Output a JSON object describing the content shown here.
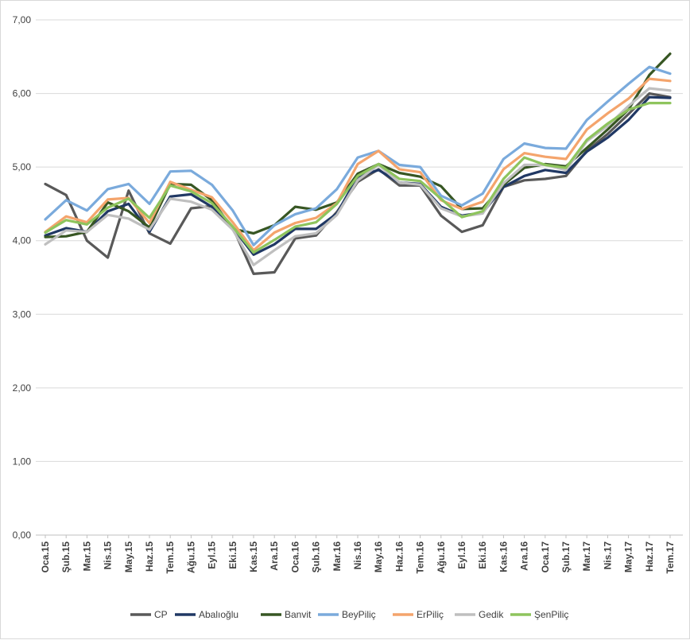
{
  "chart_data": {
    "type": "line",
    "title": "",
    "xlabel": "",
    "ylabel": "",
    "ylim": [
      0,
      7
    ],
    "yticks": [
      "0,00",
      "1,00",
      "2,00",
      "3,00",
      "4,00",
      "5,00",
      "6,00",
      "7,00"
    ],
    "grid": "horizontal",
    "legend_position": "bottom",
    "categories": [
      "Oca.15",
      "Şub.15",
      "Mar.15",
      "Nis.15",
      "May.15",
      "Haz.15",
      "Tem.15",
      "Ağu.15",
      "Eyl.15",
      "Eki.15",
      "Kas.15",
      "Ara.15",
      "Oca.16",
      "Şub.16",
      "Mar.16",
      "Nis.16",
      "May.16",
      "Haz.16",
      "Tem.16",
      "Ağu.16",
      "Eyl.16",
      "Eki.16",
      "Kas.16",
      "Ara.16",
      "Oca.17",
      "Şub.17",
      "Mar.17",
      "Nis.17",
      "May.17",
      "Haz.17",
      "Tem.17"
    ],
    "series": [
      {
        "name": "CP",
        "color": "#595959",
        "values": [
          4.77,
          4.62,
          4.0,
          3.77,
          4.68,
          4.1,
          3.96,
          4.44,
          4.47,
          4.18,
          3.55,
          3.57,
          4.03,
          4.07,
          4.39,
          4.8,
          4.97,
          4.75,
          4.75,
          4.34,
          4.12,
          4.21,
          4.73,
          4.82,
          4.84,
          4.88,
          5.22,
          5.45,
          5.72,
          6.0,
          5.95
        ]
      },
      {
        "name": "Abalıoğlu",
        "color": "#203864",
        "values": [
          4.07,
          4.17,
          4.12,
          4.4,
          4.5,
          4.12,
          4.6,
          4.63,
          4.46,
          4.18,
          3.81,
          3.95,
          4.16,
          4.16,
          4.37,
          4.87,
          4.96,
          4.79,
          4.77,
          4.46,
          4.34,
          4.38,
          4.73,
          4.88,
          4.96,
          4.92,
          5.21,
          5.4,
          5.64,
          5.95,
          5.94
        ]
      },
      {
        "name": "Banvit",
        "color": "#375623",
        "values": [
          4.05,
          4.06,
          4.12,
          4.52,
          4.4,
          4.18,
          4.77,
          4.76,
          4.55,
          4.16,
          4.1,
          4.21,
          4.46,
          4.42,
          4.52,
          4.91,
          5.04,
          4.92,
          4.87,
          4.74,
          4.43,
          4.44,
          4.76,
          4.99,
          5.04,
          5.01,
          5.26,
          5.51,
          5.78,
          6.25,
          6.54
        ]
      },
      {
        "name": "BeyPiliç",
        "color": "#7aaadc",
        "values": [
          4.29,
          4.55,
          4.41,
          4.7,
          4.77,
          4.5,
          4.94,
          4.95,
          4.76,
          4.41,
          3.94,
          4.21,
          4.36,
          4.44,
          4.7,
          5.13,
          5.22,
          5.03,
          5.0,
          4.61,
          4.48,
          4.64,
          5.11,
          5.32,
          5.26,
          5.25,
          5.64,
          5.89,
          6.13,
          6.36,
          6.27
        ]
      },
      {
        "name": "ErPiliç",
        "color": "#f4a46c",
        "values": [
          4.12,
          4.33,
          4.25,
          4.56,
          4.58,
          4.24,
          4.8,
          4.69,
          4.59,
          4.25,
          3.87,
          4.11,
          4.24,
          4.31,
          4.51,
          5.04,
          5.22,
          4.97,
          4.93,
          4.55,
          4.43,
          4.53,
          4.97,
          5.19,
          5.14,
          5.11,
          5.51,
          5.73,
          5.93,
          6.2,
          6.17
        ]
      },
      {
        "name": "Gedik",
        "color": "#bfbfbf",
        "values": [
          3.95,
          4.14,
          4.12,
          4.35,
          4.3,
          4.15,
          4.57,
          4.53,
          4.42,
          4.15,
          3.67,
          3.87,
          4.06,
          4.1,
          4.35,
          4.82,
          5.03,
          4.79,
          4.76,
          4.44,
          4.33,
          4.37,
          4.78,
          5.03,
          5.03,
          4.96,
          5.35,
          5.56,
          5.83,
          6.07,
          6.04
        ]
      },
      {
        "name": "ŞenPiliç",
        "color": "#8ec45d",
        "values": [
          4.11,
          4.28,
          4.22,
          4.45,
          4.57,
          4.31,
          4.75,
          4.67,
          4.51,
          4.19,
          3.84,
          4.01,
          4.19,
          4.25,
          4.5,
          4.88,
          5.04,
          4.84,
          4.81,
          4.57,
          4.32,
          4.4,
          4.84,
          5.13,
          5.03,
          4.99,
          5.37,
          5.59,
          5.78,
          5.87,
          5.87
        ]
      }
    ]
  }
}
